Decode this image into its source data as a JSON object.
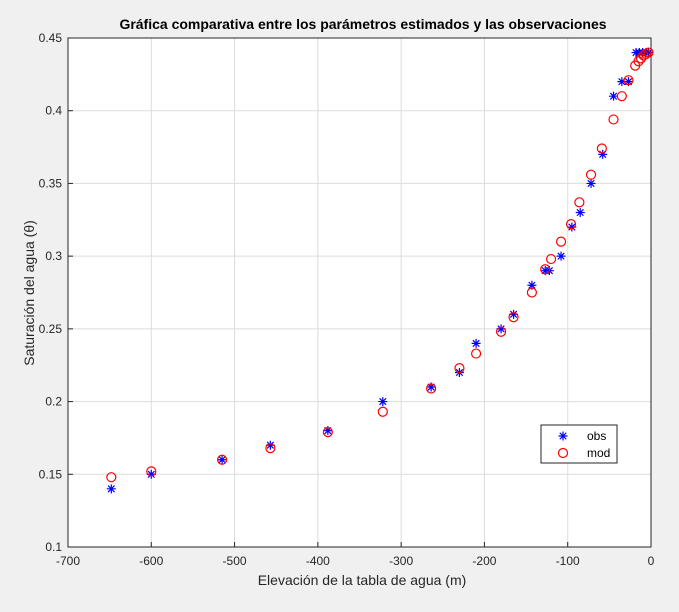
{
  "chart_data": {
    "type": "scatter",
    "title": "Gráfica comparativa entre los parámetros estimados y las observaciones",
    "xlabel": "Elevación de la tabla de agua (m)",
    "ylabel": "Saturación del agua (θ)",
    "xlim": [
      -700,
      0
    ],
    "ylim": [
      0.1,
      0.45
    ],
    "xticks": [
      -700,
      -600,
      -500,
      -400,
      -300,
      -200,
      -100,
      0
    ],
    "xtick_labels": [
      "-700",
      "-600",
      "-500",
      "-400",
      "-300",
      "-200",
      "-100",
      "0"
    ],
    "yticks": [
      0.1,
      0.15,
      0.2,
      0.25,
      0.3,
      0.35,
      0.4,
      0.45
    ],
    "ytick_labels": [
      "0.1",
      "0.15",
      "0.2",
      "0.25",
      "0.3",
      "0.35",
      "0.4",
      "0.45"
    ],
    "grid": true,
    "legend_position": "lower-right",
    "series": [
      {
        "name": "obs",
        "marker": "asterisk",
        "color": "#0000ff",
        "x": [
          -648,
          -600,
          -515,
          -457,
          -388,
          -322,
          -264,
          -230,
          -210,
          -180,
          -165,
          -143,
          -122,
          -127,
          -108,
          -95,
          -85,
          -72,
          -58,
          -45,
          -35,
          -27,
          -18,
          -14,
          -10,
          -6,
          -3
        ],
        "y": [
          0.14,
          0.15,
          0.16,
          0.17,
          0.18,
          0.2,
          0.21,
          0.22,
          0.24,
          0.25,
          0.26,
          0.28,
          0.29,
          0.29,
          0.3,
          0.32,
          0.33,
          0.35,
          0.37,
          0.41,
          0.42,
          0.42,
          0.44,
          0.44,
          0.44,
          0.44,
          0.44
        ]
      },
      {
        "name": "mod",
        "marker": "circle",
        "color": "#ff0000",
        "x": [
          -648,
          -600,
          -515,
          -457,
          -388,
          -322,
          -264,
          -230,
          -210,
          -180,
          -165,
          -143,
          -127,
          -120,
          -108,
          -96,
          -86,
          -72,
          -59,
          -45,
          -35,
          -27,
          -19,
          -15,
          -12,
          -9,
          -6,
          -3
        ],
        "y": [
          0.148,
          0.152,
          0.16,
          0.168,
          0.179,
          0.193,
          0.209,
          0.223,
          0.233,
          0.248,
          0.258,
          0.275,
          0.291,
          0.298,
          0.31,
          0.322,
          0.337,
          0.356,
          0.374,
          0.394,
          0.41,
          0.421,
          0.431,
          0.434,
          0.436,
          0.438,
          0.439,
          0.44
        ]
      }
    ]
  }
}
